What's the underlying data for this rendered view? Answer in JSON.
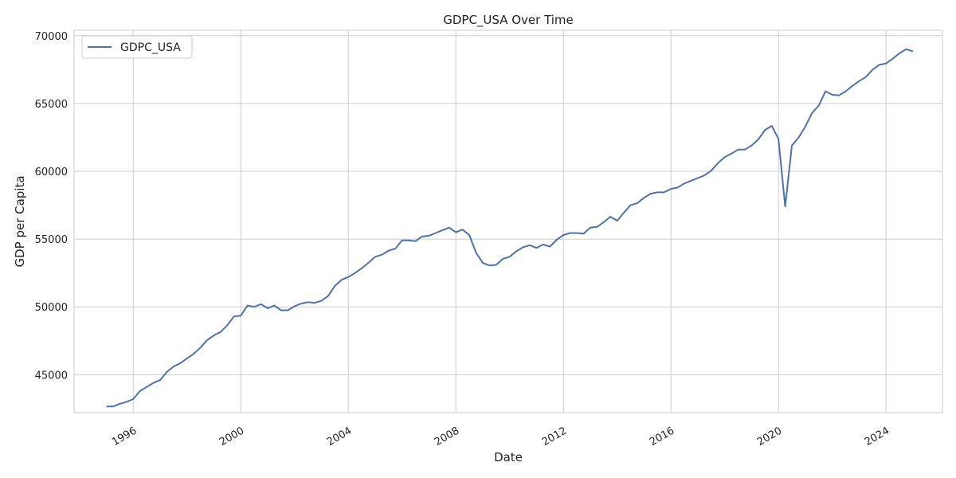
{
  "chart_data": {
    "type": "line",
    "title": "GDPC_USA Over Time",
    "xlabel": "Date",
    "ylabel": "GDP per Capita",
    "xlim": [
      1993.8,
      2026.1
    ],
    "ylim": [
      42200,
      70400
    ],
    "x_ticks": [
      1996,
      2000,
      2004,
      2008,
      2012,
      2016,
      2020,
      2024
    ],
    "x_tick_labels": [
      "1996",
      "2000",
      "2004",
      "2008",
      "2012",
      "2016",
      "2020",
      "2024"
    ],
    "y_ticks": [
      45000,
      50000,
      55000,
      60000,
      65000,
      70000
    ],
    "y_tick_labels": [
      "45000",
      "50000",
      "55000",
      "60000",
      "65000",
      "70000"
    ],
    "grid": true,
    "legend_position": "top-left",
    "line_color": "#4c72b0",
    "grid_color": "#cccccc",
    "series": [
      {
        "name": "GDPC_USA",
        "points": [
          [
            "1995-01-01",
            42650
          ],
          [
            "1995-04-01",
            42650
          ],
          [
            "1995-07-01",
            42850
          ],
          [
            "1995-10-01",
            43000
          ],
          [
            "1996-01-01",
            43200
          ],
          [
            "1996-04-01",
            43800
          ],
          [
            "1996-07-01",
            44100
          ],
          [
            "1996-10-01",
            44400
          ],
          [
            "1997-01-01",
            44600
          ],
          [
            "1997-04-01",
            45200
          ],
          [
            "1997-07-01",
            45600
          ],
          [
            "1997-10-01",
            45850
          ],
          [
            "1998-01-01",
            46200
          ],
          [
            "1998-04-01",
            46550
          ],
          [
            "1998-07-01",
            47000
          ],
          [
            "1998-10-01",
            47550
          ],
          [
            "1999-01-01",
            47900
          ],
          [
            "1999-04-01",
            48150
          ],
          [
            "1999-07-01",
            48650
          ],
          [
            "1999-10-01",
            49300
          ],
          [
            "2000-01-01",
            49350
          ],
          [
            "2000-04-01",
            50100
          ],
          [
            "2000-07-01",
            50000
          ],
          [
            "2000-10-01",
            50200
          ],
          [
            "2001-01-01",
            49900
          ],
          [
            "2001-04-01",
            50100
          ],
          [
            "2001-07-01",
            49750
          ],
          [
            "2001-10-01",
            49750
          ],
          [
            "2002-01-01",
            50050
          ],
          [
            "2002-04-01",
            50250
          ],
          [
            "2002-07-01",
            50350
          ],
          [
            "2002-10-01",
            50300
          ],
          [
            "2003-01-01",
            50450
          ],
          [
            "2003-04-01",
            50800
          ],
          [
            "2003-07-01",
            51550
          ],
          [
            "2003-10-01",
            52000
          ],
          [
            "2004-01-01",
            52200
          ],
          [
            "2004-04-01",
            52500
          ],
          [
            "2004-07-01",
            52850
          ],
          [
            "2004-10-01",
            53250
          ],
          [
            "2005-01-01",
            53700
          ],
          [
            "2005-04-01",
            53850
          ],
          [
            "2005-07-01",
            54150
          ],
          [
            "2005-10-01",
            54300
          ],
          [
            "2006-01-01",
            54900
          ],
          [
            "2006-04-01",
            54900
          ],
          [
            "2006-07-01",
            54850
          ],
          [
            "2006-10-01",
            55200
          ],
          [
            "2007-01-01",
            55250
          ],
          [
            "2007-04-01",
            55450
          ],
          [
            "2007-07-01",
            55650
          ],
          [
            "2007-10-01",
            55850
          ],
          [
            "2008-01-01",
            55500
          ],
          [
            "2008-04-01",
            55700
          ],
          [
            "2008-07-01",
            55300
          ],
          [
            "2008-10-01",
            54000
          ],
          [
            "2009-01-01",
            53250
          ],
          [
            "2009-04-01",
            53050
          ],
          [
            "2009-07-01",
            53100
          ],
          [
            "2009-10-01",
            53550
          ],
          [
            "2010-01-01",
            53700
          ],
          [
            "2010-04-01",
            54100
          ],
          [
            "2010-07-01",
            54400
          ],
          [
            "2010-10-01",
            54550
          ],
          [
            "2011-01-01",
            54350
          ],
          [
            "2011-04-01",
            54600
          ],
          [
            "2011-07-01",
            54450
          ],
          [
            "2011-10-01",
            54950
          ],
          [
            "2012-01-01",
            55300
          ],
          [
            "2012-04-01",
            55450
          ],
          [
            "2012-07-01",
            55450
          ],
          [
            "2012-10-01",
            55400
          ],
          [
            "2013-01-01",
            55850
          ],
          [
            "2013-04-01",
            55900
          ],
          [
            "2013-07-01",
            56250
          ],
          [
            "2013-10-01",
            56650
          ],
          [
            "2014-01-01",
            56350
          ],
          [
            "2014-04-01",
            56950
          ],
          [
            "2014-07-01",
            57500
          ],
          [
            "2014-10-01",
            57650
          ],
          [
            "2015-01-01",
            58050
          ],
          [
            "2015-04-01",
            58350
          ],
          [
            "2015-07-01",
            58450
          ],
          [
            "2015-10-01",
            58450
          ],
          [
            "2016-01-01",
            58700
          ],
          [
            "2016-04-01",
            58800
          ],
          [
            "2016-07-01",
            59100
          ],
          [
            "2016-10-01",
            59300
          ],
          [
            "2017-01-01",
            59500
          ],
          [
            "2017-04-01",
            59700
          ],
          [
            "2017-07-01",
            60050
          ],
          [
            "2017-10-01",
            60600
          ],
          [
            "2018-01-01",
            61050
          ],
          [
            "2018-04-01",
            61300
          ],
          [
            "2018-07-01",
            61600
          ],
          [
            "2018-10-01",
            61600
          ],
          [
            "2019-01-01",
            61900
          ],
          [
            "2019-04-01",
            62350
          ],
          [
            "2019-07-01",
            63050
          ],
          [
            "2019-10-01",
            63350
          ],
          [
            "2020-01-01",
            62400
          ],
          [
            "2020-04-01",
            57400
          ],
          [
            "2020-07-01",
            61900
          ],
          [
            "2020-10-01",
            62500
          ],
          [
            "2021-01-01",
            63300
          ],
          [
            "2021-04-01",
            64300
          ],
          [
            "2021-07-01",
            64850
          ],
          [
            "2021-10-01",
            65900
          ],
          [
            "2022-01-01",
            65650
          ],
          [
            "2022-04-01",
            65600
          ],
          [
            "2022-07-01",
            65900
          ],
          [
            "2022-10-01",
            66300
          ],
          [
            "2023-01-01",
            66650
          ],
          [
            "2023-04-01",
            66950
          ],
          [
            "2023-07-01",
            67500
          ],
          [
            "2023-10-01",
            67850
          ],
          [
            "2024-01-01",
            67950
          ],
          [
            "2024-04-01",
            68300
          ],
          [
            "2024-07-01",
            68700
          ],
          [
            "2024-10-01",
            69000
          ],
          [
            "2025-01-01",
            68850
          ]
        ]
      }
    ]
  }
}
